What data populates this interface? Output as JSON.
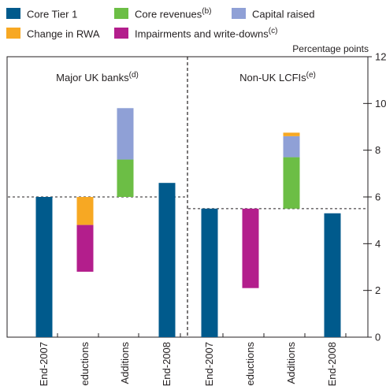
{
  "legend": {
    "items": [
      {
        "label": "Core Tier 1",
        "sup": "",
        "color": "#005a8c"
      },
      {
        "label": "Core revenues",
        "sup": "(b)",
        "color": "#6cbe45"
      },
      {
        "label": "Capital raised",
        "sup": "",
        "color": "#8fa0d6"
      },
      {
        "label": "Change in RWA",
        "sup": "",
        "color": "#f7a823"
      },
      {
        "label": "Impairments and write-downs",
        "sup": "(c)",
        "color": "#b31e8c"
      }
    ]
  },
  "chart_data": {
    "type": "bar",
    "subtype": "waterfall",
    "ylabel": "Percentage points",
    "ylim": [
      0,
      12
    ],
    "yticks": [
      0,
      2,
      4,
      6,
      8,
      10,
      12
    ],
    "y_axis_side": "right",
    "grid": false,
    "legend_position": "top",
    "categories": [
      "End-2007",
      "Deductions",
      "Additions",
      "End-2008"
    ],
    "tick_labels_visible": [
      "End-2007",
      "eductions",
      "Additions",
      "End-2008"
    ],
    "panels": [
      {
        "title": "Major UK banks",
        "title_sup": "(d)",
        "reference_line": 6.0,
        "bars": [
          {
            "category": "End-2007",
            "segments": [
              {
                "series": "Core Tier 1",
                "from": 0,
                "to": 6.0
              }
            ]
          },
          {
            "category": "Deductions",
            "segments": [
              {
                "series": "Change in RWA",
                "from": 6.0,
                "to": 4.8
              },
              {
                "series": "Impairments and write-downs",
                "from": 4.8,
                "to": 2.8
              }
            ]
          },
          {
            "category": "Additions",
            "segments": [
              {
                "series": "Core revenues",
                "from": 6.0,
                "to": 7.6
              },
              {
                "series": "Capital raised",
                "from": 7.6,
                "to": 9.8
              }
            ]
          },
          {
            "category": "End-2008",
            "segments": [
              {
                "series": "Core Tier 1",
                "from": 0,
                "to": 6.6
              }
            ]
          }
        ]
      },
      {
        "title": "Non-UK LCFIs",
        "title_sup": "(e)",
        "reference_line": 5.5,
        "bars": [
          {
            "category": "End-2007",
            "segments": [
              {
                "series": "Core Tier 1",
                "from": 0,
                "to": 5.5
              }
            ]
          },
          {
            "category": "Deductions",
            "segments": [
              {
                "series": "Impairments and write-downs",
                "from": 5.5,
                "to": 2.1
              }
            ]
          },
          {
            "category": "Additions",
            "segments": [
              {
                "series": "Core revenues",
                "from": 5.5,
                "to": 7.7
              },
              {
                "series": "Capital raised",
                "from": 7.7,
                "to": 8.6
              },
              {
                "series": "Change in RWA",
                "from": 8.6,
                "to": 8.75
              }
            ]
          },
          {
            "category": "End-2008",
            "segments": [
              {
                "series": "Core Tier 1",
                "from": 0,
                "to": 5.3
              }
            ]
          }
        ]
      }
    ]
  }
}
